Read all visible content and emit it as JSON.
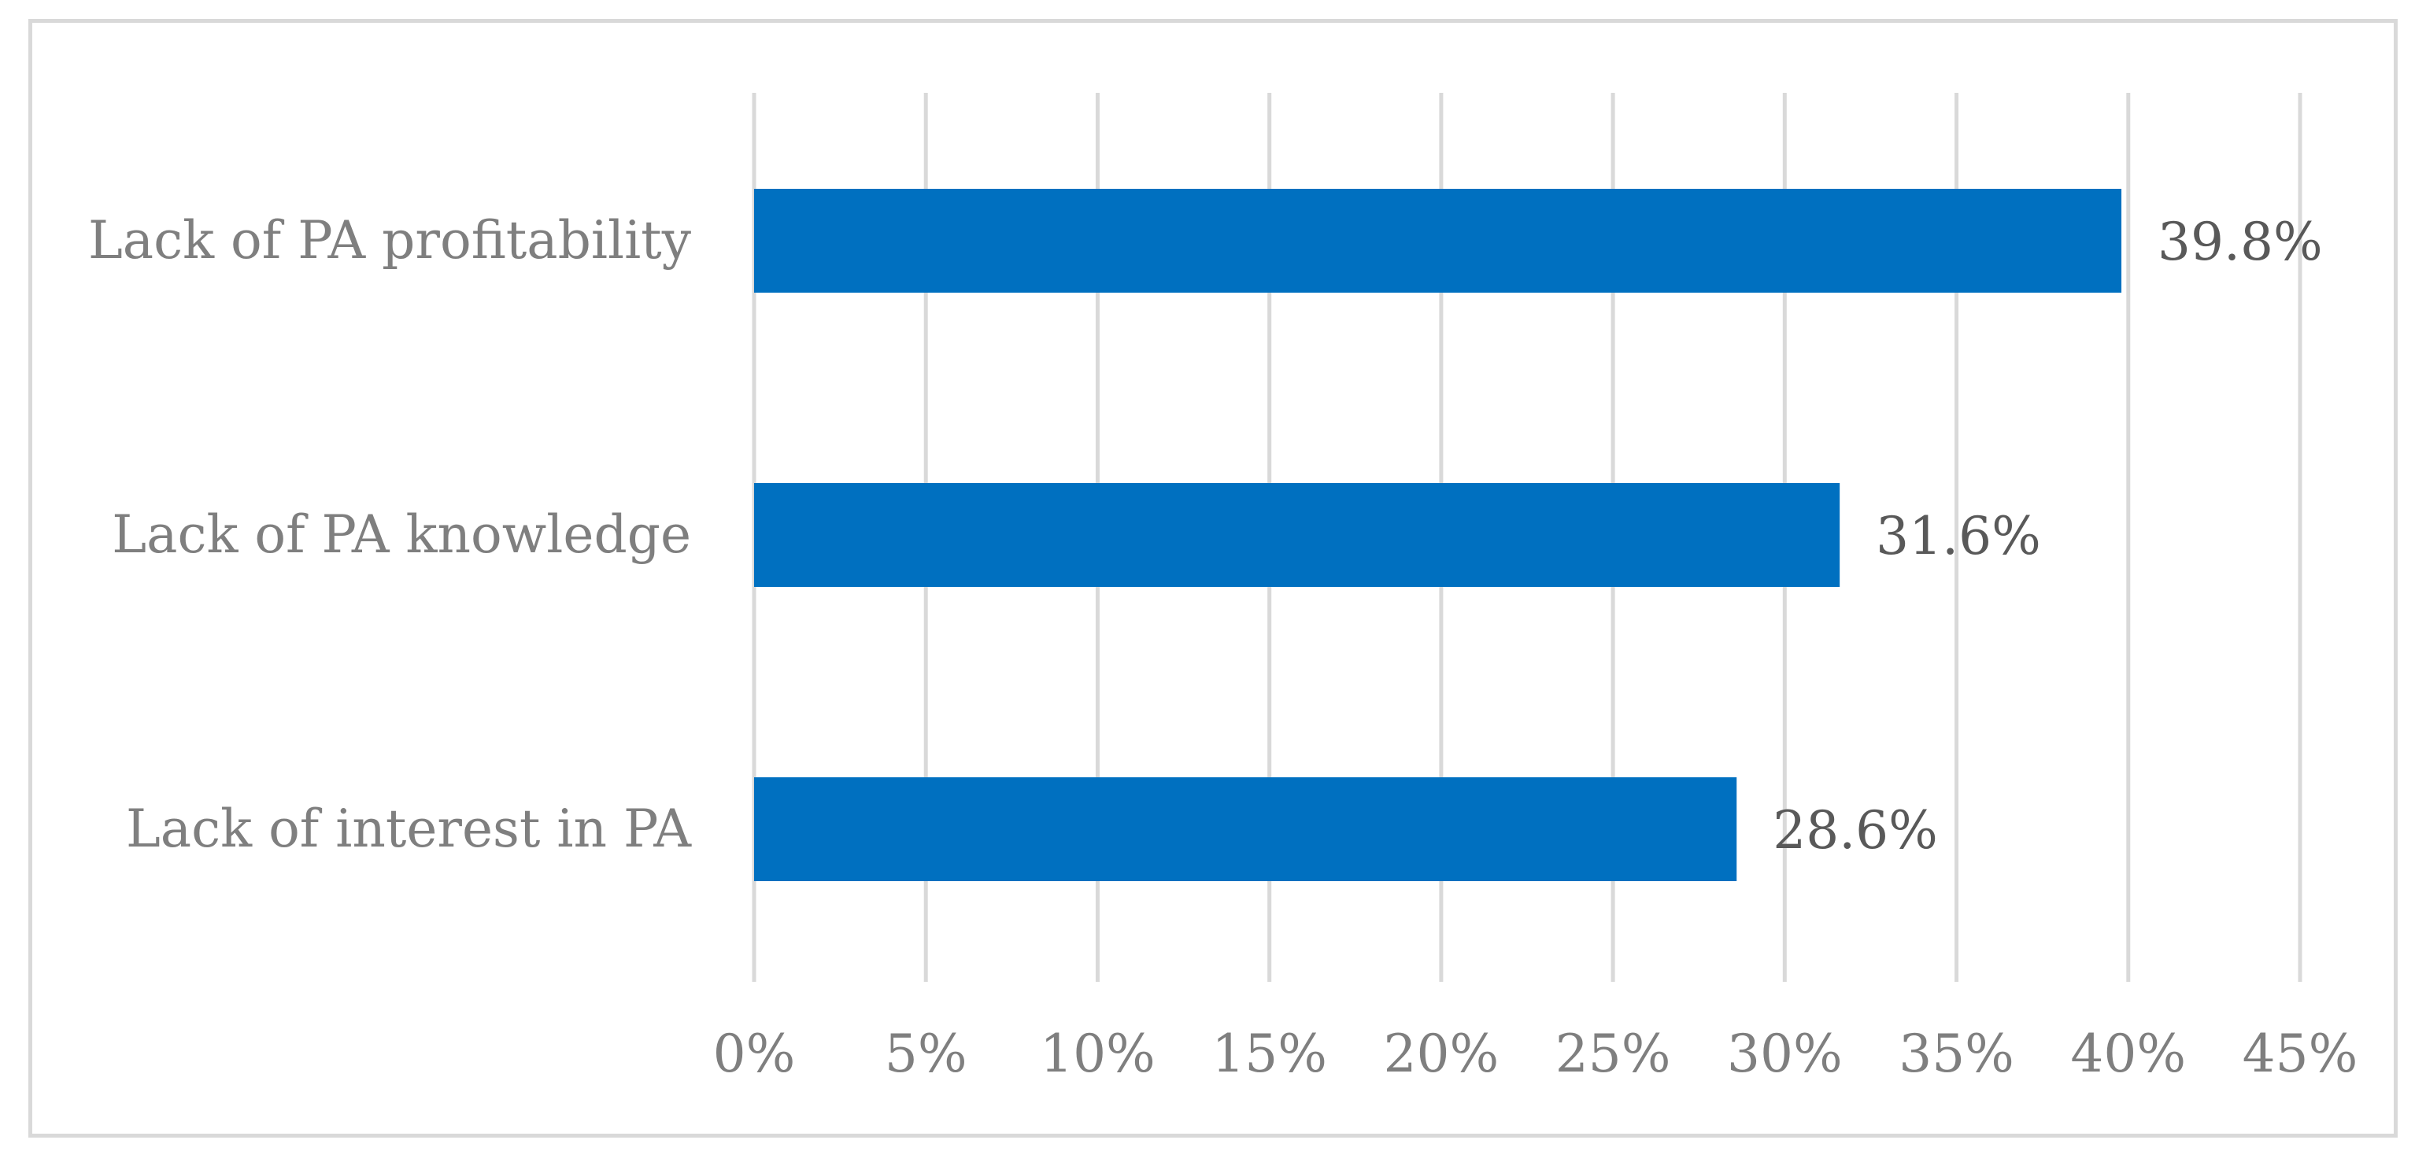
{
  "chart_data": {
    "type": "bar",
    "orientation": "horizontal",
    "title": "",
    "xlabel": "",
    "ylabel": "",
    "categories": [
      "Lack of PA profitability",
      "Lack of PA knowledge",
      "Lack of interest in PA"
    ],
    "values": [
      39.8,
      31.6,
      28.6
    ],
    "data_labels": [
      "39.8%",
      "31.6%",
      "28.6%"
    ],
    "x_ticks": [
      0,
      5,
      10,
      15,
      20,
      25,
      30,
      35,
      40,
      45
    ],
    "x_tick_labels": [
      "0%",
      "5%",
      "10%",
      "15%",
      "20%",
      "25%",
      "30%",
      "35%",
      "40%",
      "45%"
    ],
    "xlim": [
      0,
      45
    ],
    "grid": "vertical",
    "legend": "none",
    "colors": {
      "bar": "#0070c0",
      "grid": "#d9d9d9",
      "axis_text": "#7f7f7f",
      "label_text": "#595959",
      "frame": "#d9d9d9"
    }
  }
}
